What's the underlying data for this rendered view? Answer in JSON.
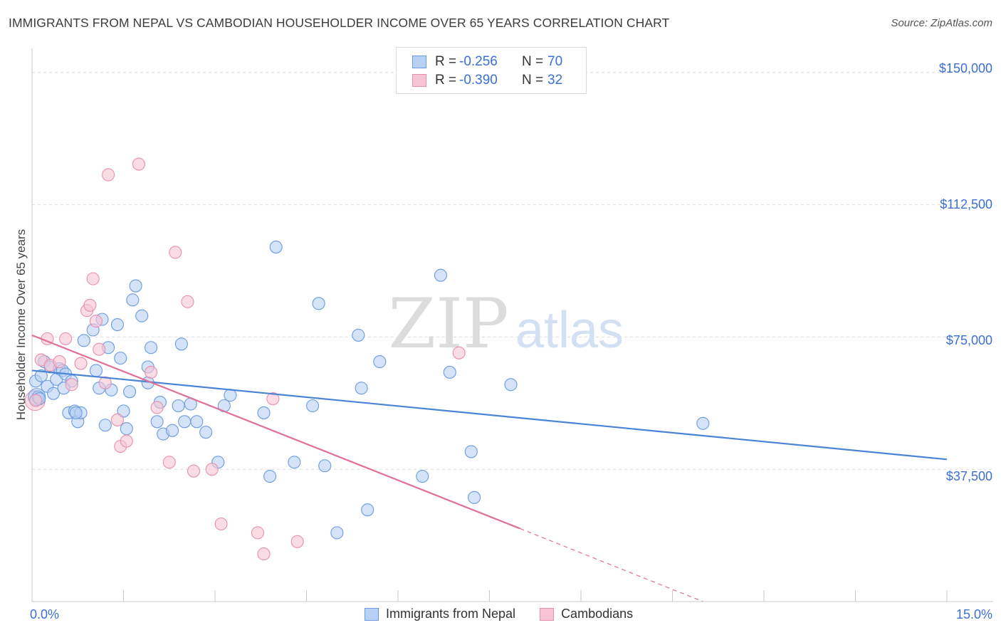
{
  "title": "IMMIGRANTS FROM NEPAL VS CAMBODIAN HOUSEHOLDER INCOME OVER 65 YEARS CORRELATION CHART",
  "source": "Source: ZipAtlas.com",
  "watermark": {
    "zip": "ZIP",
    "atlas": "atlas"
  },
  "legend": {
    "r_label": "R =",
    "n_label": "N =",
    "series": [
      {
        "name": "Immigrants from Nepal",
        "r": "-0.256",
        "n": "70",
        "color": "#6a9be0",
        "fill": "#b7d0f4"
      },
      {
        "name": "Cambodians",
        "r": "-0.390",
        "n": "32",
        "color": "#e88fac",
        "fill": "#f6c4d3"
      }
    ]
  },
  "chart_data": {
    "type": "scatter",
    "title": "IMMIGRANTS FROM NEPAL VS CAMBODIAN HOUSEHOLDER INCOME OVER 65 YEARS CORRELATION CHART",
    "xlabel": "",
    "ylabel": "Householder Income Over 65 years",
    "xlim": [
      0,
      15
    ],
    "ylim": [
      0,
      155000
    ],
    "x_tick_labels": [
      "0.0%",
      "15.0%"
    ],
    "y_ticks": [
      37500,
      75000,
      112500,
      150000
    ],
    "y_tick_labels": [
      "$37,500",
      "$75,000",
      "$112,500",
      "$150,000"
    ],
    "grid": true,
    "series": [
      {
        "name": "Immigrants from Nepal",
        "color": "#4a84d6",
        "trend": {
          "x0": 0,
          "y0": 65500,
          "x1": 15,
          "y1": 40300
        },
        "points": [
          [
            0.06,
            62500
          ],
          [
            0.1,
            58000
          ],
          [
            0.15,
            64000
          ],
          [
            0.2,
            68000
          ],
          [
            0.3,
            66500
          ],
          [
            0.25,
            61000
          ],
          [
            0.35,
            59000
          ],
          [
            0.4,
            63000
          ],
          [
            0.45,
            66000
          ],
          [
            0.5,
            65500
          ],
          [
            0.55,
            64500
          ],
          [
            0.6,
            53500
          ],
          [
            0.65,
            62500
          ],
          [
            0.7,
            54000
          ],
          [
            0.75,
            51000
          ],
          [
            0.8,
            53500
          ],
          [
            0.85,
            74000
          ],
          [
            1.0,
            77000
          ],
          [
            1.05,
            65500
          ],
          [
            1.1,
            60500
          ],
          [
            1.15,
            80000
          ],
          [
            1.2,
            50000
          ],
          [
            1.25,
            72000
          ],
          [
            1.3,
            60000
          ],
          [
            1.4,
            78500
          ],
          [
            1.45,
            69000
          ],
          [
            1.5,
            54000
          ],
          [
            1.55,
            49000
          ],
          [
            1.6,
            59500
          ],
          [
            1.65,
            85500
          ],
          [
            1.7,
            89500
          ],
          [
            1.8,
            81000
          ],
          [
            1.9,
            62000
          ],
          [
            1.95,
            72000
          ],
          [
            2.05,
            51000
          ],
          [
            2.1,
            56500
          ],
          [
            2.15,
            47500
          ],
          [
            2.3,
            48500
          ],
          [
            2.45,
            73000
          ],
          [
            2.5,
            51000
          ],
          [
            2.6,
            56000
          ],
          [
            2.7,
            51000
          ],
          [
            2.85,
            48000
          ],
          [
            3.05,
            39500
          ],
          [
            3.15,
            55500
          ],
          [
            3.25,
            58500
          ],
          [
            3.8,
            53500
          ],
          [
            4.0,
            100500
          ],
          [
            4.3,
            39500
          ],
          [
            4.6,
            55500
          ],
          [
            4.7,
            84500
          ],
          [
            4.8,
            38500
          ],
          [
            5.0,
            19500
          ],
          [
            5.35,
            75500
          ],
          [
            5.4,
            60500
          ],
          [
            5.5,
            26000
          ],
          [
            5.7,
            68000
          ],
          [
            6.4,
            35500
          ],
          [
            6.7,
            92500
          ],
          [
            6.85,
            65000
          ],
          [
            7.2,
            42500
          ],
          [
            7.25,
            29500
          ],
          [
            7.85,
            61500
          ],
          [
            11.0,
            50500
          ],
          [
            0.12,
            57500
          ],
          [
            0.52,
            60500
          ],
          [
            0.72,
            53500
          ],
          [
            1.9,
            66500
          ],
          [
            2.4,
            55500
          ],
          [
            3.9,
            35500
          ]
        ]
      },
      {
        "name": "Cambodians",
        "color": "#e07095",
        "trend": {
          "x0": 0,
          "y0": 75500,
          "x1": 8.0,
          "y1": 20700,
          "dash_to_x": 11.0,
          "dash_to_y": 0
        },
        "points": [
          [
            0.06,
            57000
          ],
          [
            0.15,
            68500
          ],
          [
            0.25,
            74500
          ],
          [
            0.3,
            67000
          ],
          [
            0.45,
            68000
          ],
          [
            0.55,
            74500
          ],
          [
            0.65,
            61500
          ],
          [
            0.8,
            67500
          ],
          [
            0.9,
            82500
          ],
          [
            0.95,
            84000
          ],
          [
            1.0,
            91500
          ],
          [
            1.05,
            79500
          ],
          [
            1.1,
            71500
          ],
          [
            1.2,
            62000
          ],
          [
            1.25,
            121000
          ],
          [
            1.4,
            51500
          ],
          [
            1.45,
            44000
          ],
          [
            1.55,
            45500
          ],
          [
            1.75,
            124000
          ],
          [
            1.95,
            65000
          ],
          [
            2.05,
            55000
          ],
          [
            2.25,
            39500
          ],
          [
            2.35,
            99000
          ],
          [
            2.55,
            85000
          ],
          [
            2.65,
            37000
          ],
          [
            2.95,
            37500
          ],
          [
            3.1,
            22000
          ],
          [
            3.7,
            19500
          ],
          [
            3.95,
            57500
          ],
          [
            3.8,
            13500
          ],
          [
            4.35,
            17000
          ],
          [
            7.0,
            70500
          ]
        ]
      }
    ]
  }
}
